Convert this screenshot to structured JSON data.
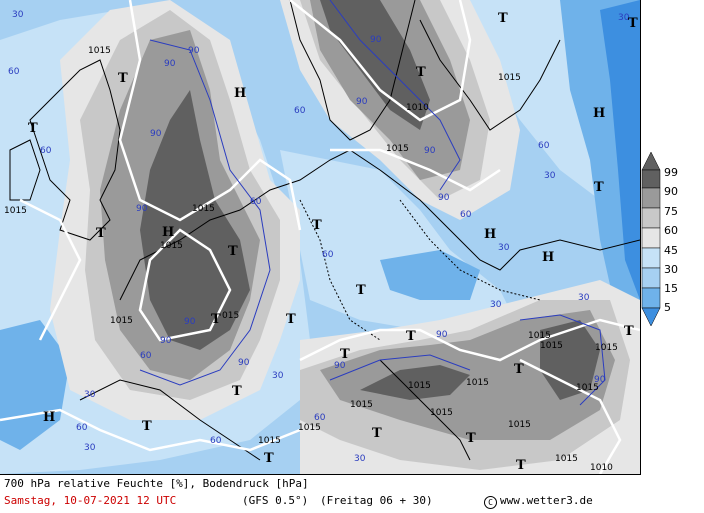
{
  "map": {
    "colors": {
      "rh_99": "#606060",
      "rh_90": "#9a9a9a",
      "rh_75": "#c8c8c8",
      "rh_60": "#e6e6e6",
      "rh_45": "#c6e2f7",
      "rh_30": "#a6d0f2",
      "rh_15": "#6fb2ea",
      "rh_5": "#3d8fe0",
      "isobar": "#ffffff",
      "coast": "#000000",
      "rh_contour_label": "#2b3dbf"
    },
    "pressure_labels": [
      "1015",
      "1015",
      "1015",
      "1015",
      "1015",
      "1010",
      "1015",
      "1015",
      "1015",
      "1015",
      "1015",
      "1015",
      "1015",
      "1015",
      "1015",
      "1015",
      "1015",
      "1015",
      "1015",
      "1010",
      "1015",
      "015"
    ],
    "rh_labels": [
      "90",
      "90",
      "90",
      "90",
      "90",
      "90",
      "90",
      "90",
      "90",
      "90",
      "90",
      "90",
      "90",
      "90",
      "60",
      "60",
      "60",
      "60",
      "60",
      "60",
      "60",
      "60",
      "60",
      "60",
      "60",
      "30",
      "30",
      "30",
      "30",
      "30",
      "30",
      "30",
      "30",
      "30",
      "30"
    ],
    "high_symbol": "H",
    "low_symbol": "T"
  },
  "legend": {
    "ticks": [
      "99",
      "90",
      "75",
      "60",
      "45",
      "30",
      "15",
      "5"
    ]
  },
  "footer": {
    "title": "700 hPa relative Feuchte [%], Bodendruck [hPa]",
    "date": "Samstag, 10-07-2021  12 UTC",
    "model": "(GFS 0.5°)",
    "run": "(Freitag 06 + 30)",
    "copyright_symbol": "C",
    "site": "www.wetter3.de"
  }
}
